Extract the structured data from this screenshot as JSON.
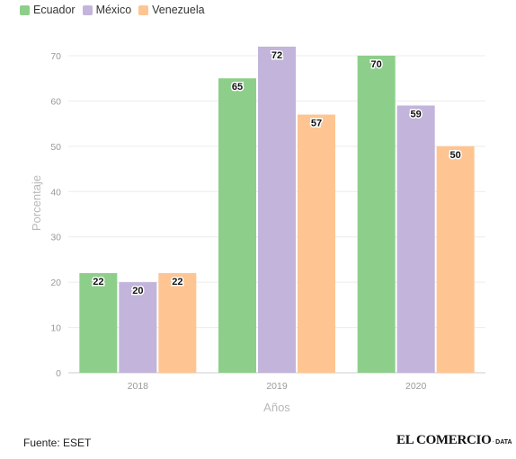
{
  "chart_data": {
    "type": "bar",
    "categories": [
      "2018",
      "2019",
      "2020"
    ],
    "series": [
      {
        "name": "Ecuador",
        "values": [
          22,
          65,
          70
        ],
        "color": "#8dcf8a"
      },
      {
        "name": "México",
        "values": [
          20,
          72,
          59
        ],
        "color": "#c2b4db"
      },
      {
        "name": "Venezuela",
        "values": [
          22,
          57,
          50
        ],
        "color": "#fec592"
      }
    ],
    "xlabel": "Años",
    "ylabel": "Porcentaje",
    "ylim": [
      0,
      70
    ],
    "yticks": [
      0,
      10,
      20,
      30,
      40,
      50,
      60,
      70
    ],
    "grid": true,
    "legend": "top-left"
  },
  "footer": {
    "source": "Fuente: ESET",
    "brand_name": "EL COMERCIO",
    "brand_dot": "·",
    "brand_sub": "DATA"
  }
}
